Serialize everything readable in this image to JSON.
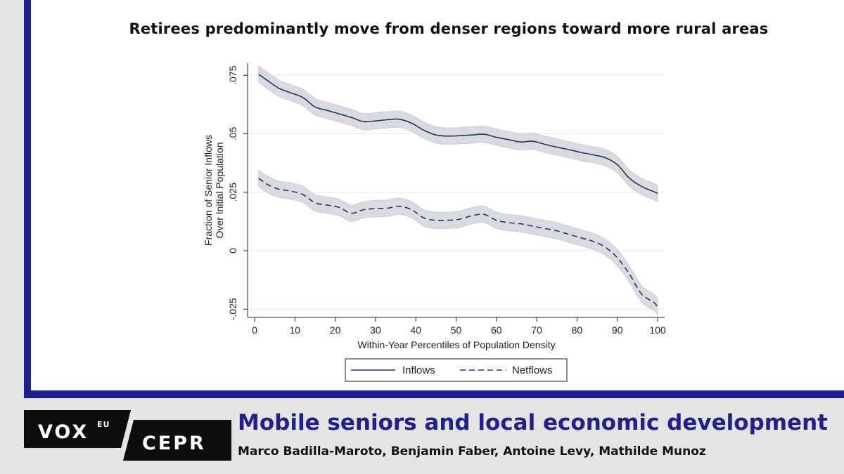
{
  "chart_data": {
    "type": "line",
    "title": "Retirees predominantly move from denser regions toward more rural areas",
    "xlabel": "Within-Year Percentiles of Population Density",
    "ylabel": [
      "Fraction of Senior Inflows",
      "Over Initial Population"
    ],
    "xlim": [
      0,
      100
    ],
    "ylim": [
      -0.03,
      0.08
    ],
    "xticks": [
      "0",
      "10",
      "20",
      "30",
      "40",
      "50",
      "60",
      "70",
      "80",
      "90",
      "100"
    ],
    "yticks": [
      "-.025",
      "0",
      ".025",
      ".05",
      ".075"
    ],
    "grid": true,
    "legend_position": "bottom",
    "band_color": "#d9dbe0",
    "line_color": "#1e3a5f",
    "series": [
      {
        "name": "Inflows",
        "style": "solid",
        "x": [
          1,
          3,
          6,
          9,
          12,
          15,
          18,
          21,
          24,
          27,
          30,
          33,
          36,
          39,
          42,
          45,
          48,
          51,
          54,
          57,
          60,
          63,
          66,
          69,
          72,
          75,
          78,
          81,
          84,
          87,
          90,
          93,
          96,
          99,
          100
        ],
        "y": [
          0.0755,
          0.073,
          0.0695,
          0.0675,
          0.0655,
          0.0615,
          0.06,
          0.0585,
          0.057,
          0.0552,
          0.0555,
          0.056,
          0.0562,
          0.0545,
          0.0515,
          0.0495,
          0.049,
          0.0492,
          0.0495,
          0.0498,
          0.0485,
          0.0475,
          0.0465,
          0.0468,
          0.0455,
          0.0443,
          0.0432,
          0.042,
          0.041,
          0.0398,
          0.0368,
          0.031,
          0.0275,
          0.0253,
          0.0245
        ],
        "band": 0.0035
      },
      {
        "name": "Netflows",
        "style": "dashed",
        "x": [
          1,
          3,
          6,
          9,
          12,
          15,
          18,
          21,
          24,
          27,
          30,
          33,
          36,
          39,
          42,
          45,
          48,
          51,
          54,
          57,
          60,
          63,
          66,
          69,
          72,
          75,
          78,
          81,
          84,
          87,
          90,
          93,
          96,
          99,
          100
        ],
        "y": [
          0.031,
          0.0285,
          0.0263,
          0.0255,
          0.024,
          0.0205,
          0.0195,
          0.0185,
          0.016,
          0.0175,
          0.018,
          0.0182,
          0.019,
          0.0175,
          0.014,
          0.013,
          0.013,
          0.0135,
          0.015,
          0.0155,
          0.013,
          0.012,
          0.0115,
          0.0105,
          0.0095,
          0.0085,
          0.007,
          0.0055,
          0.004,
          0.0015,
          -0.003,
          -0.01,
          -0.0185,
          -0.022,
          -0.024
        ],
        "band": 0.0035
      }
    ]
  },
  "footer": {
    "logo_vox": "VOX",
    "logo_eu": "EU",
    "logo_cepr": "CEPR",
    "headline": "Mobile seniors and local economic development",
    "authors": "Marco Badilla-Maroto, Benjamin Faber, Antoine Levy, Mathilde Munoz"
  }
}
